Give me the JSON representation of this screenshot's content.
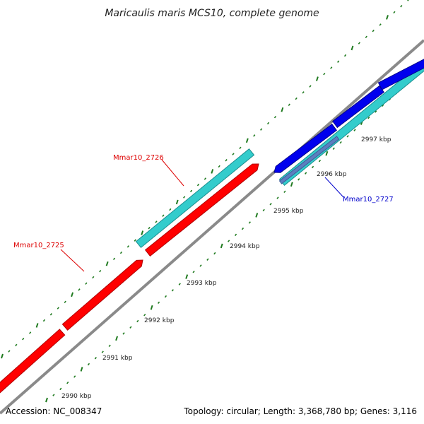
{
  "title": "Maricaulis maris MCS10, complete genome",
  "footer": {
    "accession": "Accession: NC_008347",
    "summary": "Topology: circular; Length: 3,368,780 bp; Genes: 3,116"
  },
  "colors": {
    "backbone": "#8a8a8a",
    "tick": "#1f7a1f",
    "forward_gene": "#ff0000",
    "forward_gene_dark": "#b00000",
    "cyan_gene": "#33cccc",
    "cyan_gene_dark": "#1a8f8f",
    "blue_gene": "#0000ee",
    "blue_gene_dark": "#00008a",
    "label_red": "#dd0000",
    "label_blue": "#0000cc",
    "leader_red": "#dd0000",
    "leader_blue": "#0000cc"
  },
  "kbp_labels": [
    "2990 kbp",
    "2991 kbp",
    "2992 kbp",
    "2993 kbp",
    "2994 kbp",
    "2995 kbp",
    "2996 kbp",
    "2997 kbp"
  ],
  "gene_labels": [
    {
      "name": "Mmar10_2725",
      "color": "label_red"
    },
    {
      "name": "Mmar10_2726",
      "color": "label_red"
    },
    {
      "name": "Mmar10_2727",
      "color": "label_blue"
    }
  ]
}
